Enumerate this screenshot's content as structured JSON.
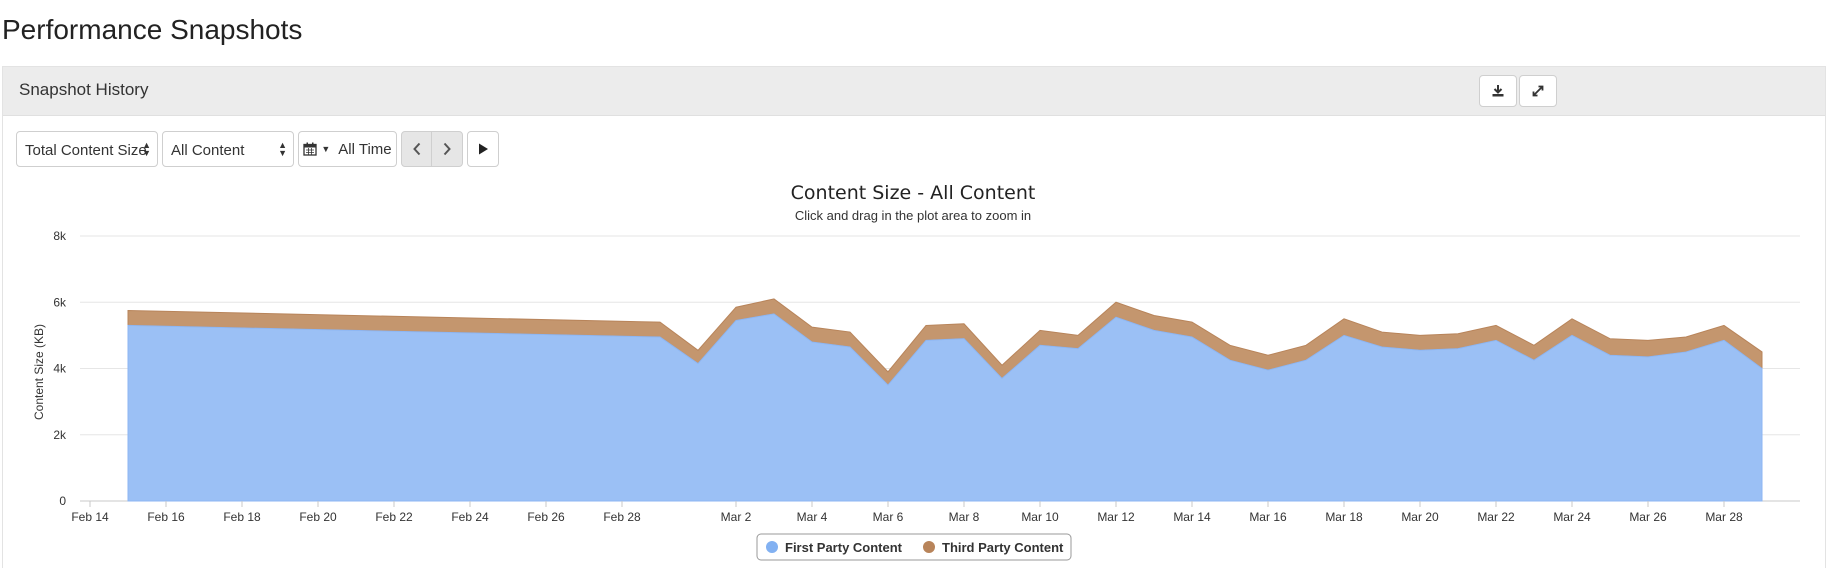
{
  "page": {
    "title": "Performance Snapshots"
  },
  "panel": {
    "title": "Snapshot History",
    "download_icon": "download-icon",
    "expand_icon": "expand-icon"
  },
  "toolbar": {
    "metric_select": "Total Content Size",
    "content_select": "All Content",
    "range_label": "All Time",
    "calendar_icon": "calendar-icon",
    "prev_icon": "chevron-left-icon",
    "next_icon": "chevron-right-icon",
    "play_icon": "play-icon"
  },
  "chart_data": {
    "type": "area",
    "stacked": true,
    "title": "Content Size - All Content",
    "subtitle": "Click and drag in the plot area to zoom in",
    "ylabel": "Content Size (KB)",
    "xlabel": "",
    "ylim": [
      0,
      8000
    ],
    "y_ticks": [
      0,
      2000,
      4000,
      6000,
      8000
    ],
    "y_tick_labels": [
      "0",
      "2k",
      "4k",
      "6k",
      "8k"
    ],
    "x_range": [
      "2016-02-14",
      "2016-03-30"
    ],
    "x_ticks": [
      "2016-02-14",
      "2016-02-16",
      "2016-02-18",
      "2016-02-20",
      "2016-02-22",
      "2016-02-24",
      "2016-02-26",
      "2016-02-28",
      "2016-03-02",
      "2016-03-04",
      "2016-03-06",
      "2016-03-08",
      "2016-03-10",
      "2016-03-12",
      "2016-03-14",
      "2016-03-16",
      "2016-03-18",
      "2016-03-20",
      "2016-03-22",
      "2016-03-24",
      "2016-03-26",
      "2016-03-28"
    ],
    "x_tick_labels": [
      "Feb 14",
      "Feb 16",
      "Feb 18",
      "Feb 20",
      "Feb 22",
      "Feb 24",
      "Feb 26",
      "Feb 28",
      "Mar 2",
      "Mar 4",
      "Mar 6",
      "Mar 8",
      "Mar 10",
      "Mar 12",
      "Mar 14",
      "Mar 16",
      "Mar 18",
      "Mar 20",
      "Mar 22",
      "Mar 24",
      "Mar 26",
      "Mar 28"
    ],
    "grid": true,
    "legend_position": "bottom-center",
    "colors": {
      "first_party": "#9bc0f5",
      "third_party": "#c4966e"
    },
    "x": [
      "2016-02-15",
      "2016-02-29",
      "2016-03-01",
      "2016-03-02",
      "2016-03-03",
      "2016-03-04",
      "2016-03-05",
      "2016-03-06",
      "2016-03-07",
      "2016-03-08",
      "2016-03-09",
      "2016-03-10",
      "2016-03-11",
      "2016-03-12",
      "2016-03-13",
      "2016-03-14",
      "2016-03-15",
      "2016-03-16",
      "2016-03-17",
      "2016-03-18",
      "2016-03-19",
      "2016-03-20",
      "2016-03-21",
      "2016-03-22",
      "2016-03-23",
      "2016-03-24",
      "2016-03-25",
      "2016-03-26",
      "2016-03-27",
      "2016-03-28",
      "2016-03-29"
    ],
    "series": [
      {
        "name": "First Party Content",
        "values": [
          5300,
          4950,
          4150,
          5450,
          5650,
          4800,
          4650,
          3500,
          4850,
          4900,
          3700,
          4700,
          4600,
          5550,
          5150,
          4950,
          4250,
          3950,
          4250,
          5000,
          4650,
          4550,
          4600,
          4850,
          4250,
          5000,
          4400,
          4350,
          4500,
          4850,
          4000
        ]
      },
      {
        "name": "Third Party Content",
        "values": [
          450,
          450,
          400,
          400,
          450,
          450,
          450,
          400,
          450,
          450,
          400,
          450,
          400,
          450,
          450,
          450,
          450,
          450,
          450,
          500,
          450,
          450,
          450,
          450,
          450,
          500,
          500,
          500,
          450,
          450,
          500
        ]
      }
    ]
  }
}
